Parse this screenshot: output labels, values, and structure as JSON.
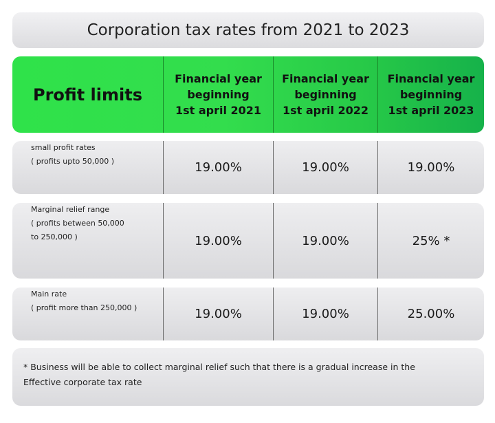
{
  "title": "Corporation tax rates from 2021 to 2023",
  "table": {
    "header": {
      "profit_limits": "Profit limits",
      "columns": [
        {
          "line1": "Financial year",
          "line2": "beginning",
          "line3": "1st april 2021"
        },
        {
          "line1": "Financial year",
          "line2": "beginning",
          "line3": "1st april 2022"
        },
        {
          "line1": "Financial year",
          "line2": "beginning",
          "line3": "1st april 2023"
        }
      ]
    },
    "rows": [
      {
        "label_lines": [
          "small profit rates",
          "( profits upto  50,000 )"
        ],
        "values": [
          "19.00%",
          "19.00%",
          "19.00%"
        ]
      },
      {
        "label_lines": [
          "Marginal relief range",
          "( profits between  50,000",
          "to   250,000 )"
        ],
        "values": [
          "19.00%",
          "19.00%",
          "25% *"
        ]
      },
      {
        "label_lines": [
          "Main rate",
          "( profit more than   250,000 )"
        ],
        "values": [
          "19.00%",
          "19.00%",
          "25.00%"
        ]
      }
    ]
  },
  "note": {
    "line1": "* Business will be able to collect marginal relief such that there is a gradual increase in the",
    "line2": "Effective corporate tax rate"
  },
  "colors": {
    "header_green": "#2fe24a",
    "header_green_dark": "#16b24a",
    "panel_gray": "#dcdcdf"
  }
}
